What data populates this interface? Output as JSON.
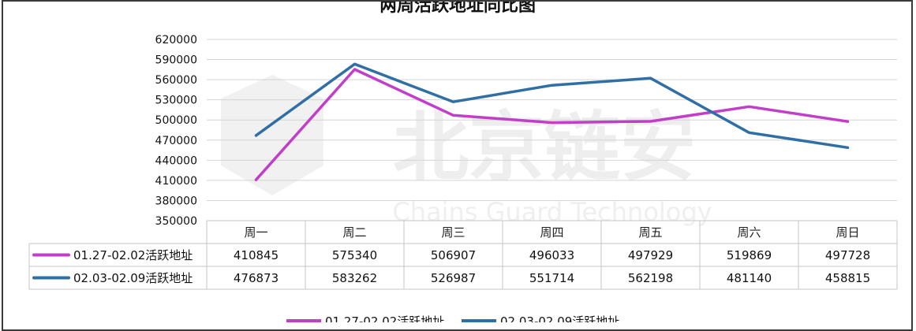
{
  "chart_data": {
    "type": "line",
    "title": "两周活跃地址同比图",
    "categories": [
      "周一",
      "周二",
      "周三",
      "周四",
      "周五",
      "周六",
      "周日"
    ],
    "series": [
      {
        "name": "01.27-02.02活跃地址",
        "color": "#c23ec9",
        "values": [
          410845,
          575340,
          506907,
          496033,
          497929,
          519869,
          497728
        ]
      },
      {
        "name": "02.03-02.09活跃地址",
        "color": "#2f6fa6",
        "values": [
          476873,
          583262,
          526987,
          551714,
          562198,
          481140,
          458815
        ]
      }
    ],
    "ylim": [
      350000,
      620000
    ],
    "yticks": [
      350000,
      380000,
      410000,
      440000,
      470000,
      500000,
      530000,
      560000,
      590000,
      620000
    ],
    "grid": true,
    "legend_position": "bottom",
    "data_table": true
  },
  "watermark": {
    "main": "北京链安",
    "sub": "Chains Guard Technology"
  }
}
